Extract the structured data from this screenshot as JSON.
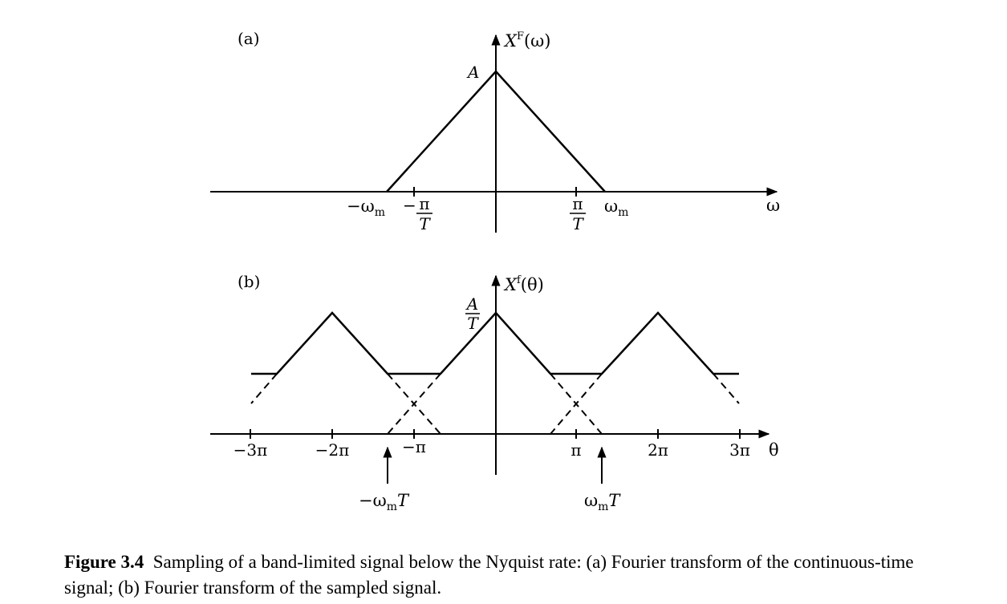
{
  "panel_a": {
    "tag": "(a)",
    "ylabel_base": "X",
    "ylabel_sup": "F",
    "ylabel_arg": "(ω)",
    "peak": "A",
    "xaxis": "ω",
    "neg_wm": "−ω",
    "wm": "ω",
    "wm_sub": "m",
    "neg_sign": "−",
    "pi": "π",
    "T": "T"
  },
  "panel_b": {
    "tag": "(b)",
    "ylabel_base": "X",
    "ylabel_sup": "f",
    "ylabel_arg": "(θ)",
    "peak_num": "A",
    "peak_den": "T",
    "xaxis": "θ",
    "ticks": [
      "−3π",
      "−2π",
      "−π",
      "π",
      "2π",
      "3π"
    ],
    "arrow_left_pre": "−ω",
    "arrow_right_pre": "ω",
    "arrow_sub": "m",
    "arrow_T": "T"
  },
  "caption": {
    "number": "Figure 3.4",
    "text": "Sampling of a band-limited signal below the Nyquist rate: (a) Fourier transform of the continuous-time signal; (b) Fourier transform of the sampled signal."
  }
}
